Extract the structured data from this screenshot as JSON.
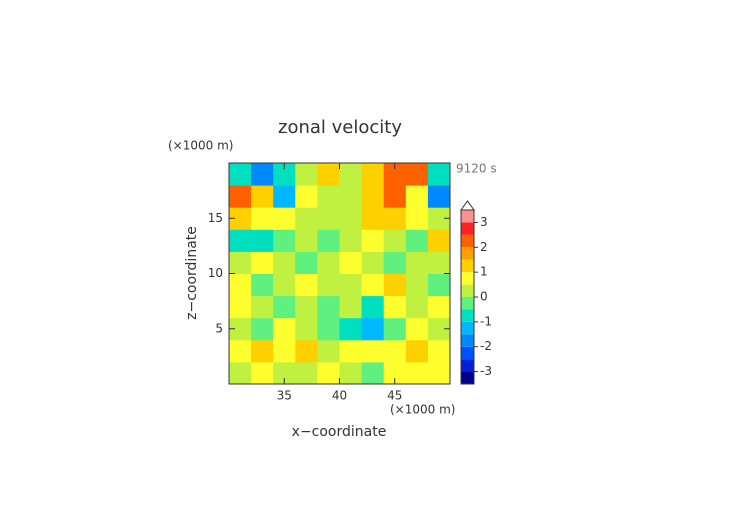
{
  "chart_data": {
    "type": "contour",
    "title": "zonal velocity",
    "x_label": "x−coordinate",
    "y_label": "z−coordinate",
    "x_unit": "(×1000 m)",
    "y_unit": "(×1000 m)",
    "time_label": "9120 s",
    "xlim": [
      30,
      50
    ],
    "ylim": [
      0,
      20
    ],
    "xticks": [
      35,
      40,
      45
    ],
    "yticks": [
      5,
      10,
      15
    ],
    "x": [
      31,
      33,
      35,
      37,
      39,
      41,
      43,
      45,
      47,
      49
    ],
    "y": [
      1,
      3,
      5,
      7,
      9,
      11,
      13,
      15,
      17,
      19
    ],
    "z": [
      [
        0,
        0.5,
        0,
        0,
        0.5,
        0,
        -0.5,
        0.5,
        0.5,
        0.5
      ],
      [
        0.5,
        1,
        0.5,
        1,
        0,
        0.5,
        0.5,
        0.5,
        1,
        0.5
      ],
      [
        0,
        -0.5,
        0.5,
        0,
        -0.5,
        -1,
        -1.5,
        -0.5,
        0.5,
        0
      ],
      [
        0.5,
        0,
        -0.5,
        0,
        -0.5,
        0,
        -1,
        0.5,
        0,
        0.5
      ],
      [
        0.5,
        -0.5,
        0,
        0.5,
        0,
        0,
        0.5,
        1,
        0,
        -0.5
      ],
      [
        0,
        0.5,
        0,
        -0.5,
        0,
        0.5,
        0,
        -0.5,
        0,
        0
      ],
      [
        -1,
        -1,
        -0.5,
        0,
        -0.5,
        0,
        0.5,
        0,
        -0.5,
        1
      ],
      [
        1,
        0.5,
        0.5,
        0,
        0,
        0,
        1,
        1,
        0.5,
        0
      ],
      [
        2,
        1,
        -1.5,
        0.5,
        0,
        0,
        1,
        2,
        0.5,
        -2
      ],
      [
        -1,
        -2,
        -1,
        0,
        1,
        0,
        1,
        2,
        2,
        -1
      ]
    ],
    "levels": [
      -3.5,
      -3,
      -2.5,
      -2,
      -1.5,
      -1,
      -0.5,
      0,
      0.5,
      1,
      1.5,
      2,
      2.5,
      3,
      3.5
    ],
    "colors": [
      "#00008c",
      "#0020d8",
      "#0050ff",
      "#0088ff",
      "#00b8ff",
      "#00e0c0",
      "#60f080",
      "#c0f040",
      "#ffff30",
      "#ffd000",
      "#ffa000",
      "#ff6000",
      "#ff2020",
      "#ff9090"
    ],
    "cbar_ticks": [
      -3,
      -2,
      -1,
      0,
      1,
      2,
      3
    ]
  }
}
